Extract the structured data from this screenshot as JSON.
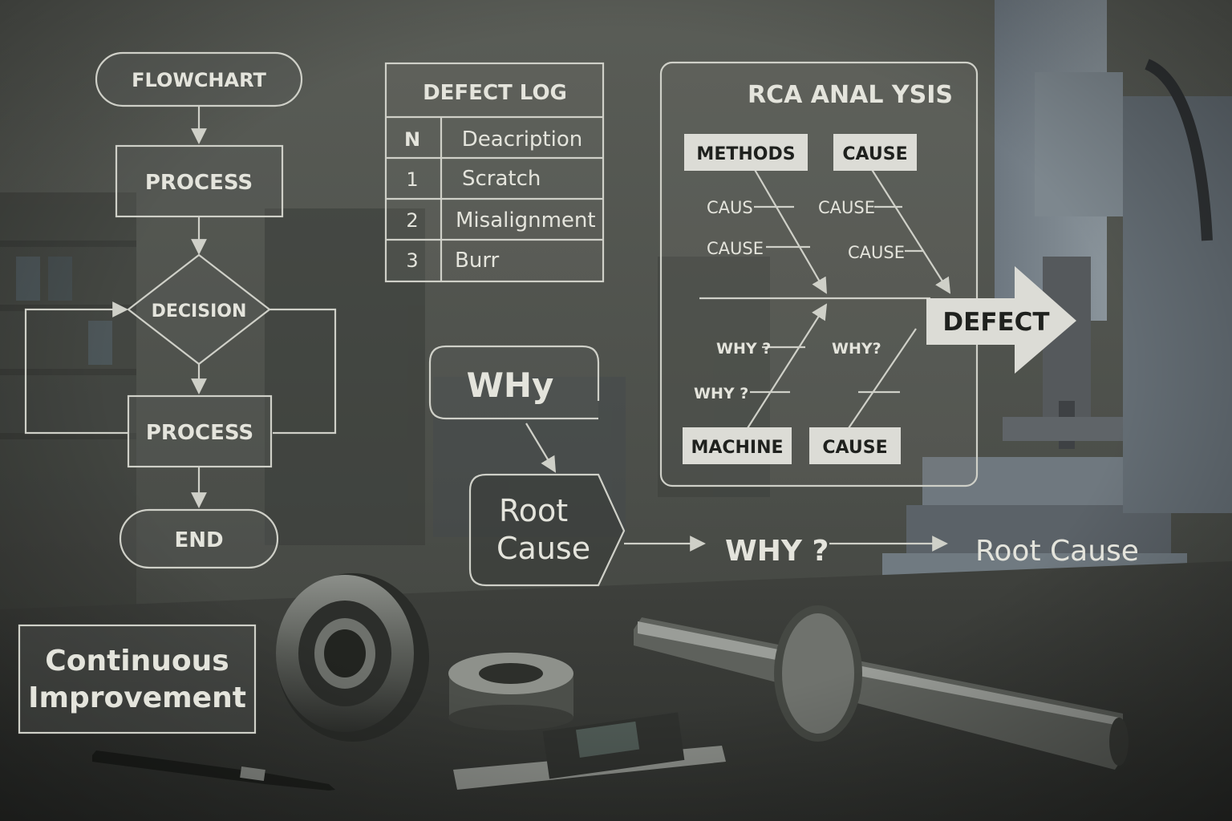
{
  "flowchart": {
    "title": "FLOWCHART",
    "step1": "PROCESS",
    "decision": "DECISION",
    "step2": "PROCESS",
    "end": "END"
  },
  "continuous_improvement": {
    "line1": "Continuous",
    "line2": "Improvement"
  },
  "defect_log": {
    "title": "DEFECT LOG",
    "columns": [
      "N",
      "Deacription"
    ],
    "rows": [
      [
        "1",
        "Scratch"
      ],
      [
        "2",
        "Misalignment"
      ],
      [
        "3",
        "Burr"
      ]
    ]
  },
  "why_flow": {
    "why_box": "WHy",
    "root_line1": "Root",
    "root_line2": "Cause",
    "why_question": "WHY ?",
    "root_cause_final": "Root Cause"
  },
  "rca": {
    "title": "RCA ANAL YSIS",
    "top_left_tag": "METHODS",
    "top_right_tag": "CAUSE",
    "bottom_left_tag": "MACHINE",
    "bottom_right_tag": "CAUSE",
    "top_left_causes": [
      "CAUS",
      "CAUSE"
    ],
    "top_right_causes": [
      "CAUSE",
      "CAUSE"
    ],
    "bottom_left_whys": [
      "WHY ?",
      "WHY ?"
    ],
    "bottom_right_whys": [
      "WHY?"
    ],
    "defect": "DEFECT"
  }
}
